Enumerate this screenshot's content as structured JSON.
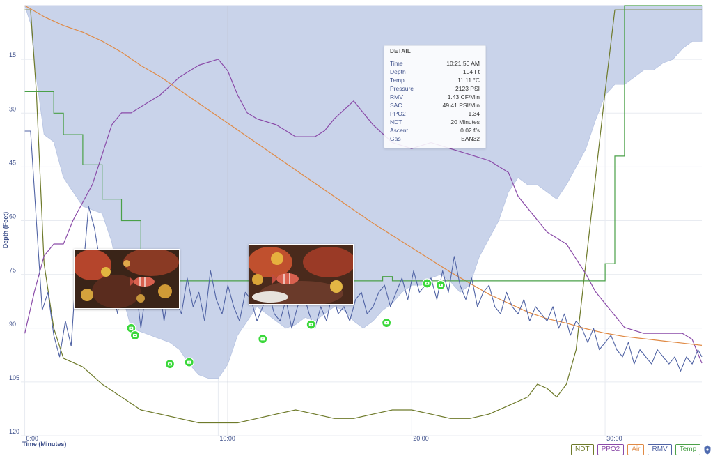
{
  "chart_data": {
    "type": "line",
    "xlabel": "Time (Minutes)",
    "ylabel": "Depth (Feet)",
    "xlim": [
      -0.2,
      35
    ],
    "ylim": [
      0,
      120
    ],
    "y_inverted": true,
    "grid": true,
    "legend_position": "bottom-right",
    "x_ticks": [
      {
        "value": 0,
        "label": "0:00"
      },
      {
        "value": 10,
        "label": "10:00"
      },
      {
        "value": 20,
        "label": "20:00"
      },
      {
        "value": 30,
        "label": "30:00"
      }
    ],
    "y_ticks": [
      15,
      30,
      45,
      60,
      75,
      90,
      105,
      120
    ],
    "series": [
      {
        "name": "Depth",
        "color": "#c9d3ea",
        "x": [
          0,
          0.3,
          0.6,
          1,
          1.5,
          2,
          2.5,
          3,
          3.5,
          4,
          4.5,
          5,
          5.5,
          6,
          6.5,
          7,
          7.5,
          8,
          8.5,
          9,
          9.5,
          10,
          10.5,
          11,
          11.5,
          12,
          12.5,
          13,
          13.5,
          14,
          14.5,
          15,
          15.5,
          16,
          16.5,
          17,
          17.5,
          18,
          18.5,
          19,
          19.5,
          20,
          20.5,
          21,
          21.5,
          22,
          22.5,
          23,
          23.5,
          24,
          24.5,
          25,
          25.5,
          26,
          26.5,
          27,
          27.5,
          28,
          28.5,
          29,
          29.5,
          30,
          30.5,
          31,
          31.5,
          32,
          32.5,
          33,
          33.5,
          34,
          34.5,
          35
        ],
        "values": [
          0,
          5,
          20,
          36,
          38,
          48,
          52,
          56,
          57,
          58,
          66,
          80,
          90,
          91,
          92,
          93,
          94,
          96,
          100,
          103,
          104,
          104,
          100,
          92,
          88,
          84,
          86,
          88,
          90,
          89,
          87,
          88,
          86,
          84,
          85,
          88,
          90,
          88,
          85,
          83,
          80,
          78,
          78,
          76,
          75,
          77,
          80,
          78,
          70,
          65,
          60,
          52,
          48,
          50,
          50,
          52,
          54,
          50,
          45,
          40,
          32,
          25,
          22,
          22,
          20,
          18,
          18,
          16,
          15,
          12,
          10,
          10
        ]
      },
      {
        "name": "RMV",
        "color": "#5063a4",
        "x": [
          0,
          0.3,
          0.6,
          0.9,
          1.2,
          1.5,
          1.8,
          2.1,
          2.4,
          2.7,
          3,
          3.3,
          3.6,
          3.9,
          4.2,
          4.5,
          4.8,
          5.1,
          5.4,
          5.7,
          6,
          6.3,
          6.6,
          6.9,
          7.2,
          7.5,
          7.8,
          8.1,
          8.4,
          8.7,
          9,
          9.3,
          9.6,
          9.9,
          10.2,
          10.5,
          10.8,
          11.1,
          11.4,
          11.7,
          12,
          12.3,
          12.6,
          12.9,
          13.2,
          13.5,
          13.8,
          14.1,
          14.4,
          14.7,
          15,
          15.3,
          15.6,
          15.9,
          16.2,
          16.5,
          16.8,
          17.1,
          17.4,
          17.7,
          18,
          18.3,
          18.6,
          18.9,
          19.2,
          19.5,
          19.8,
          20.1,
          20.4,
          20.7,
          21,
          21.3,
          21.6,
          21.9,
          22.2,
          22.5,
          22.8,
          23.1,
          23.4,
          23.7,
          24,
          24.3,
          24.6,
          24.9,
          25.2,
          25.5,
          25.8,
          26.1,
          26.4,
          26.7,
          27,
          27.3,
          27.6,
          27.9,
          28.2,
          28.5,
          28.8,
          29.1,
          29.4,
          29.7,
          30,
          30.3,
          30.6,
          30.9,
          31.2,
          31.5,
          31.8,
          32.1,
          32.4,
          32.7,
          33,
          33.3,
          33.6,
          33.9,
          34.2,
          34.5,
          34.8,
          35
        ],
        "values": [
          35,
          35,
          60,
          85,
          80,
          92,
          98,
          88,
          95,
          70,
          75,
          56,
          62,
          72,
          80,
          78,
          86,
          74,
          82,
          76,
          90,
          78,
          84,
          76,
          88,
          78,
          82,
          86,
          76,
          84,
          80,
          88,
          74,
          82,
          86,
          78,
          84,
          88,
          80,
          82,
          88,
          84,
          80,
          86,
          88,
          82,
          90,
          84,
          80,
          86,
          90,
          84,
          88,
          80,
          86,
          84,
          88,
          82,
          80,
          86,
          84,
          80,
          78,
          84,
          80,
          76,
          82,
          74,
          80,
          78,
          76,
          82,
          74,
          80,
          70,
          78,
          82,
          76,
          84,
          80,
          78,
          84,
          86,
          80,
          84,
          86,
          82,
          88,
          84,
          86,
          88,
          84,
          90,
          86,
          92,
          88,
          90,
          94,
          90,
          96,
          94,
          92,
          96,
          98,
          94,
          100,
          96,
          98,
          100,
          96,
          98,
          100,
          98,
          102,
          98,
          100,
          96,
          98
        ]
      },
      {
        "name": "PPO2",
        "color": "#8a4aa8",
        "x": [
          0,
          0.5,
          1,
          1.5,
          2,
          2.5,
          3,
          3.5,
          4,
          4.5,
          5,
          5.5,
          6,
          7,
          8,
          9,
          10,
          10.5,
          11,
          11.5,
          12,
          13,
          14,
          15,
          15.5,
          16,
          17,
          17.5,
          18,
          19,
          20,
          21,
          22,
          23,
          24,
          25,
          25.5,
          26,
          26.5,
          27,
          28,
          29,
          29.5,
          30,
          31,
          32,
          33,
          34,
          34.5,
          35
        ],
        "values": [
          1.05,
          1.12,
          1.18,
          1.2,
          1.2,
          1.24,
          1.27,
          1.3,
          1.35,
          1.4,
          1.42,
          1.42,
          1.43,
          1.45,
          1.48,
          1.5,
          1.51,
          1.49,
          1.45,
          1.42,
          1.41,
          1.4,
          1.38,
          1.38,
          1.39,
          1.41,
          1.44,
          1.42,
          1.4,
          1.37,
          1.36,
          1.37,
          1.36,
          1.35,
          1.34,
          1.32,
          1.28,
          1.26,
          1.24,
          1.22,
          1.2,
          1.15,
          1.12,
          1.1,
          1.06,
          1.05,
          1.05,
          1.05,
          1.04,
          1.0
        ]
      },
      {
        "name": "Air",
        "color": "#e08a45",
        "x": [
          0,
          1,
          2,
          3,
          4,
          5,
          6,
          7,
          8,
          9,
          10,
          11,
          12,
          13,
          14,
          15,
          16,
          17,
          18,
          19,
          20,
          21,
          22,
          23,
          24,
          25,
          26,
          27,
          28,
          29,
          30,
          31,
          32,
          33,
          34,
          35
        ],
        "values": [
          3200,
          3150,
          3110,
          3080,
          3040,
          2990,
          2930,
          2880,
          2820,
          2760,
          2700,
          2640,
          2580,
          2520,
          2460,
          2400,
          2340,
          2280,
          2220,
          2165,
          2110,
          2055,
          2000,
          1950,
          1900,
          1860,
          1820,
          1790,
          1770,
          1745,
          1725,
          1710,
          1700,
          1690,
          1680,
          1670
        ]
      },
      {
        "name": "NDT",
        "color": "#6e7a2a",
        "x": [
          0,
          0.3,
          0.6,
          1,
          1.5,
          2,
          3,
          4,
          5,
          6,
          7,
          8,
          9,
          10,
          11,
          12,
          13,
          14,
          15,
          16,
          17,
          18,
          19,
          20,
          21,
          22,
          23,
          24,
          25,
          26,
          26.5,
          27,
          27.5,
          28,
          28.5,
          29,
          29.5,
          30,
          30.5,
          31,
          32,
          33,
          34,
          35
        ],
        "values": [
          99,
          99,
          80,
          40,
          25,
          18,
          16,
          12,
          9,
          6,
          5,
          4,
          3,
          3,
          3,
          4,
          5,
          6,
          5,
          4,
          4,
          5,
          6,
          6,
          5,
          4,
          4,
          5,
          7,
          9,
          12,
          11,
          9,
          12,
          20,
          40,
          60,
          80,
          99,
          99,
          99,
          99,
          99,
          99
        ]
      },
      {
        "name": "Temp",
        "color": "#4aa048",
        "x": [
          0,
          1,
          1.5,
          2,
          3,
          4,
          5,
          6,
          7,
          8,
          9,
          10,
          11,
          12,
          13,
          14,
          15,
          16,
          17,
          18,
          18.5,
          19,
          20,
          21,
          22,
          23,
          24,
          25,
          26,
          27,
          28,
          29,
          30,
          30.5,
          31,
          32,
          33,
          34,
          35
        ],
        "values": [
          15.5,
          15.5,
          15.0,
          14.5,
          13.8,
          13.0,
          12.5,
          11.8,
          11.4,
          11.1,
          11.1,
          11.1,
          11.1,
          11.1,
          11.1,
          11.1,
          11.1,
          11.1,
          11.1,
          11.1,
          11.2,
          11.1,
          11.1,
          11.1,
          11.1,
          11.1,
          11.1,
          11.1,
          11.1,
          11.1,
          11.1,
          11.1,
          11.5,
          14,
          17.5,
          17.5,
          17.5,
          17.5,
          17.5
        ]
      }
    ],
    "photo_markers": [
      {
        "x": 5.5,
        "depth": 90
      },
      {
        "x": 5.7,
        "depth": 92
      },
      {
        "x": 7.5,
        "depth": 100
      },
      {
        "x": 8.5,
        "depth": 99.5
      },
      {
        "x": 12.3,
        "depth": 93
      },
      {
        "x": 14.8,
        "depth": 89
      },
      {
        "x": 18.7,
        "depth": 88.5
      },
      {
        "x": 20.8,
        "depth": 77.5
      },
      {
        "x": 21.5,
        "depth": 78
      }
    ],
    "cursor_x": 10.5
  },
  "detail": {
    "header": "DETAIL",
    "rows": [
      {
        "label": "Time",
        "value": "10:21:50 AM"
      },
      {
        "label": "Depth",
        "value": "104 Ft"
      },
      {
        "label": "Temp",
        "value": "11.11 °C"
      },
      {
        "label": "Pressure",
        "value": "2123 PSI"
      },
      {
        "label": "RMV",
        "value": "1.43 CF/Min"
      },
      {
        "label": "SAC",
        "value": "49.41 PSI/Min"
      },
      {
        "label": "PPO2",
        "value": "1.34"
      },
      {
        "label": "NDT",
        "value": "20 Minutes"
      },
      {
        "label": "Ascent",
        "value": "0.02 f/s"
      },
      {
        "label": "Gas",
        "value": "EAN32"
      }
    ]
  },
  "legend": {
    "items": [
      {
        "label": "NDT",
        "color": "#6e7a2a"
      },
      {
        "label": "PPO2",
        "color": "#8a4aa8"
      },
      {
        "label": "Air",
        "color": "#e08a45"
      },
      {
        "label": "RMV",
        "color": "#5063a4"
      },
      {
        "label": "Temp",
        "color": "#4aa048"
      }
    ],
    "extra_icon": "shield-icon"
  }
}
